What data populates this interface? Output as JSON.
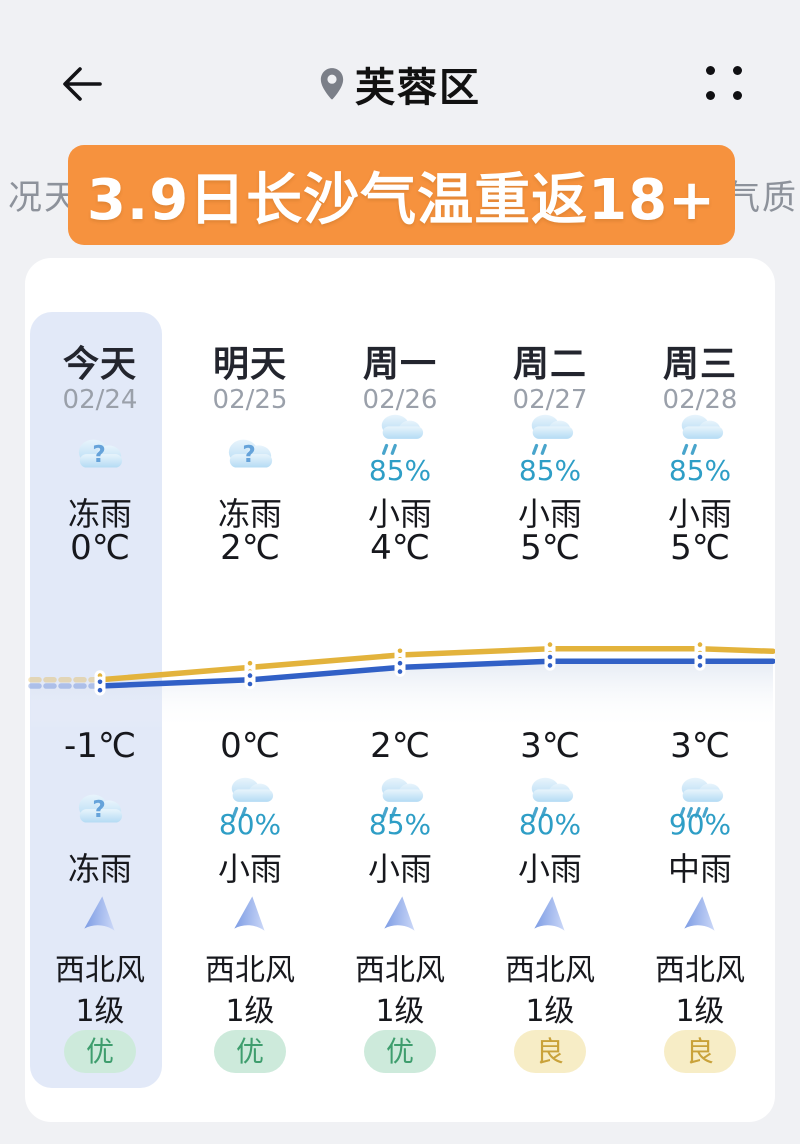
{
  "header": {
    "title": "芙蓉区"
  },
  "tabs": {
    "left_partial": "况天",
    "right_partial": "气质"
  },
  "banner": {
    "text": "3.9日长沙气温重返18+",
    "bg_color": "#f6923e"
  },
  "forecast": {
    "columns": [
      {
        "name": "今天",
        "date": "02/24",
        "selected": true,
        "day": {
          "icon": "unknown-weather",
          "pct": "",
          "cond": "冻雨",
          "temp": "0℃"
        },
        "low_temp": "-1℃",
        "night": {
          "icon": "unknown-weather",
          "pct": "",
          "cond": "冻雨"
        },
        "wind": {
          "dir": "西北风",
          "level": "1级"
        },
        "aqi": {
          "label": "优",
          "type": "excellent"
        }
      },
      {
        "name": "明天",
        "date": "02/25",
        "selected": false,
        "day": {
          "icon": "unknown-weather",
          "pct": "",
          "cond": "冻雨",
          "temp": "2℃"
        },
        "low_temp": "0℃",
        "night": {
          "icon": "light-rain",
          "pct": "80%",
          "cond": "小雨"
        },
        "wind": {
          "dir": "西北风",
          "level": "1级"
        },
        "aqi": {
          "label": "优",
          "type": "excellent"
        }
      },
      {
        "name": "周一",
        "date": "02/26",
        "selected": false,
        "day": {
          "icon": "light-rain",
          "pct": "85%",
          "cond": "小雨",
          "temp": "4℃"
        },
        "low_temp": "2℃",
        "night": {
          "icon": "light-rain",
          "pct": "85%",
          "cond": "小雨"
        },
        "wind": {
          "dir": "西北风",
          "level": "1级"
        },
        "aqi": {
          "label": "优",
          "type": "excellent"
        }
      },
      {
        "name": "周二",
        "date": "02/27",
        "selected": false,
        "day": {
          "icon": "light-rain",
          "pct": "85%",
          "cond": "小雨",
          "temp": "5℃"
        },
        "low_temp": "3℃",
        "night": {
          "icon": "light-rain",
          "pct": "80%",
          "cond": "小雨"
        },
        "wind": {
          "dir": "西北风",
          "level": "1级"
        },
        "aqi": {
          "label": "良",
          "type": "good"
        }
      },
      {
        "name": "周三",
        "date": "02/28",
        "selected": false,
        "day": {
          "icon": "light-rain",
          "pct": "85%",
          "cond": "小雨",
          "temp": "5℃"
        },
        "low_temp": "3℃",
        "night": {
          "icon": "moderate-rain",
          "pct": "90%",
          "cond": "中雨"
        },
        "wind": {
          "dir": "西北风",
          "level": "1级"
        },
        "aqi": {
          "label": "良",
          "type": "good"
        }
      }
    ]
  },
  "chart_data": {
    "type": "line",
    "categories": [
      "今天",
      "明天",
      "周一",
      "周二",
      "周三"
    ],
    "series": [
      {
        "name": "最高气温",
        "color": "#e3b33c",
        "values": [
          0,
          2,
          4,
          5,
          5
        ]
      },
      {
        "name": "最低气温",
        "color": "#3160c6",
        "values": [
          -1,
          0,
          2,
          3,
          3
        ]
      }
    ],
    "unit": "℃",
    "ylim": [
      -2,
      6
    ],
    "grid": false,
    "legend": "none",
    "history_dashed_left": true
  },
  "colors": {
    "banner": "#f6923e",
    "percent_text": "#2e9ec6",
    "high_line": "#e3b33c",
    "low_line": "#3160c6",
    "today_highlight": "#e2e9f8",
    "aqi_excellent_bg": "#cdeadb",
    "aqi_excellent_text": "#3f9e6e",
    "aqi_good_bg": "#f7edc6",
    "aqi_good_text": "#c9a23a"
  }
}
